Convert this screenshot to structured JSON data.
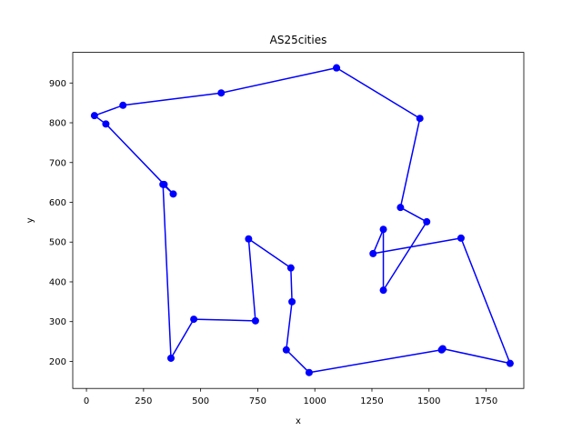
{
  "chart_data": {
    "type": "line",
    "title": "AS25cities",
    "xlabel": "x",
    "ylabel": "y",
    "xlim": [
      -60,
      1915
    ],
    "ylim": [
      132,
      977
    ],
    "grid": false,
    "legend": "none",
    "x_ticks": [
      0,
      250,
      500,
      750,
      1000,
      1250,
      1500,
      1750
    ],
    "y_ticks": [
      200,
      300,
      400,
      500,
      600,
      700,
      800,
      900
    ],
    "series": [
      {
        "color": "#0000ff",
        "marker": "circle",
        "x": [
          1095,
          590,
          160,
          35,
          85,
          340,
          380,
          335,
          370,
          470,
          740,
          710,
          895,
          900,
          875,
          975,
          1555,
          1560,
          1855,
          1640,
          1255,
          1300,
          1300,
          1490,
          1375,
          1460,
          1095
        ],
        "y": [
          938,
          875,
          844,
          818,
          797,
          645,
          621,
          645,
          208,
          306,
          302,
          508,
          435,
          350,
          229,
          172,
          229,
          232,
          195,
          510,
          471,
          532,
          379,
          551,
          587,
          811,
          938
        ]
      }
    ]
  }
}
